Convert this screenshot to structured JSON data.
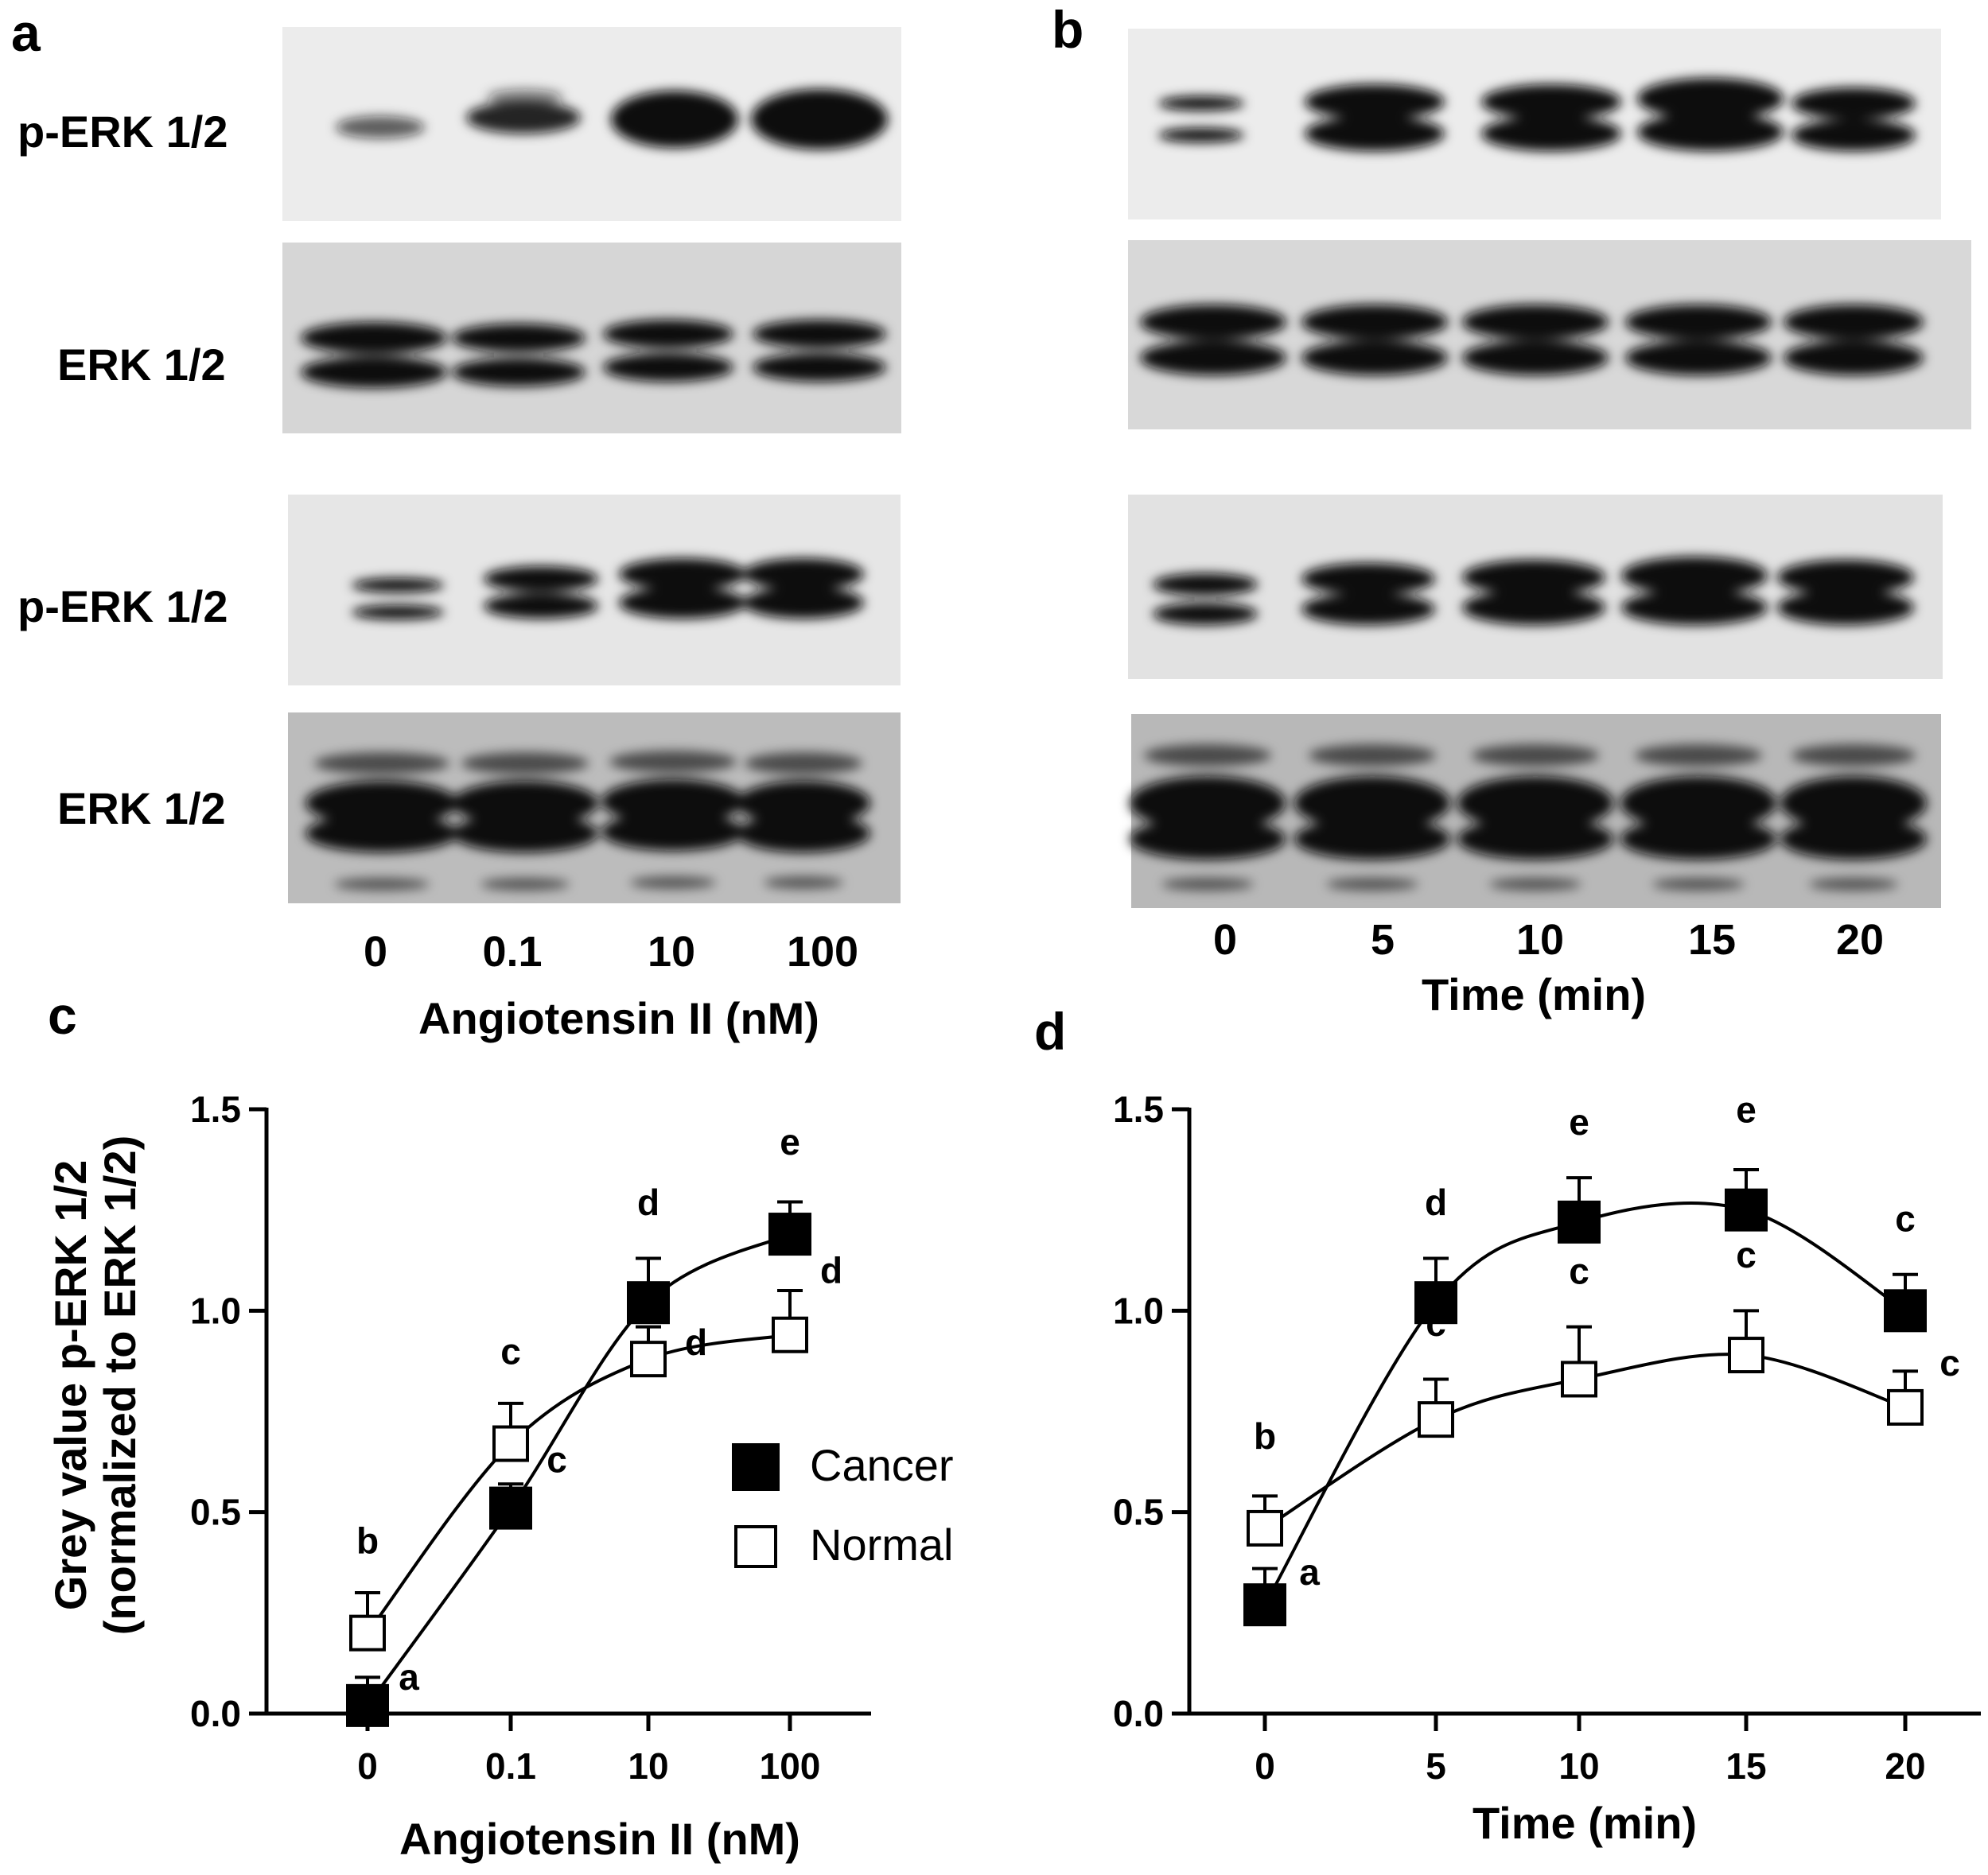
{
  "panels": {
    "a": {
      "letter": "a",
      "blot_labels": [
        "p-ERK 1/2",
        "ERK 1/2",
        "p-ERK 1/2",
        "ERK 1/2"
      ],
      "lane_labels": [
        "0",
        "0.1",
        "10",
        "100"
      ],
      "xlabel": "Angiotensin II (nM)"
    },
    "b": {
      "letter": "b",
      "lane_labels": [
        "0",
        "5",
        "10",
        "15",
        "20"
      ],
      "xlabel": "Time (min)"
    }
  },
  "chart_data": [
    {
      "panel": "c",
      "type": "line",
      "categories": [
        "0",
        "0.1",
        "10",
        "100"
      ],
      "xlabel": "Angiotensin II (nM)",
      "ylabel": [
        "Grey value p-ERK 1/2",
        "(normalized to ERK 1/2)"
      ],
      "ylim": [
        0,
        1.5
      ],
      "yticks": [
        "0.0",
        "0.5",
        "1.0",
        "1.5"
      ],
      "legend": {
        "position": "center-right",
        "entries": [
          "Cancer",
          "Normal"
        ]
      },
      "series": [
        {
          "name": "Cancer",
          "marker": "filled-square",
          "values": [
            0.02,
            0.51,
            1.02,
            1.19
          ],
          "errors": [
            0.07,
            0.06,
            0.11,
            0.08
          ],
          "labels": [
            "a",
            "c",
            "d",
            "e"
          ]
        },
        {
          "name": "Normal",
          "marker": "open-square",
          "values": [
            0.2,
            0.67,
            0.88,
            0.94
          ],
          "errors": [
            0.1,
            0.1,
            0.08,
            0.11
          ],
          "labels": [
            "b",
            "c",
            "d",
            "d"
          ]
        }
      ]
    },
    {
      "panel": "d",
      "type": "line",
      "x": [
        0,
        5,
        10,
        15,
        20
      ],
      "xlabel": "Time (min)",
      "ylim": [
        0,
        1.5
      ],
      "xlim": [
        0,
        20
      ],
      "yticks": [
        "0.0",
        "0.5",
        "1.0",
        "1.5"
      ],
      "xticks": [
        "0",
        "5",
        "10",
        "15",
        "20"
      ],
      "series": [
        {
          "name": "Cancer",
          "marker": "filled-square",
          "values": [
            0.27,
            1.02,
            1.22,
            1.25,
            1.0
          ],
          "errors": [
            0.09,
            0.11,
            0.11,
            0.1,
            0.09
          ],
          "labels": [
            "a",
            "d",
            "e",
            "e",
            "c"
          ]
        },
        {
          "name": "Normal",
          "marker": "open-square",
          "values": [
            0.46,
            0.73,
            0.83,
            0.89,
            0.76
          ],
          "errors": [
            0.08,
            0.1,
            0.13,
            0.11,
            0.09
          ],
          "labels": [
            "b",
            "c",
            "c",
            "c",
            "c"
          ]
        }
      ]
    }
  ],
  "colors": {
    "ink": "#000000",
    "open_fill": "#ffffff",
    "blot_bg": "#d9d9d9"
  }
}
